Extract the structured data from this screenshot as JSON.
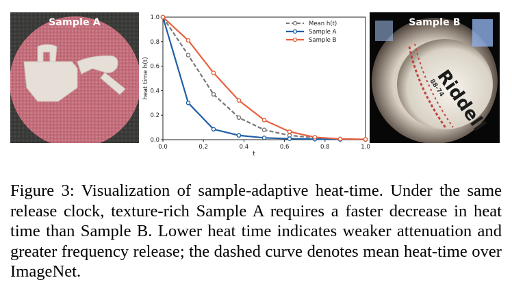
{
  "figure": {
    "left_image_label": "Sample A",
    "right_image_label": "Sample B",
    "right_image_text": "Riddell",
    "right_image_subtext": "88-74"
  },
  "chart_data": {
    "type": "line",
    "xlabel": "t",
    "ylabel": "heat time h(t)",
    "xlim": [
      0.0,
      1.0
    ],
    "ylim": [
      0.0,
      1.0
    ],
    "x_ticks": [
      "0.0",
      "0.2",
      "0.4",
      "0.6",
      "0.8",
      "1.0"
    ],
    "y_ticks": [
      "0.0",
      "0.2",
      "0.4",
      "0.6",
      "0.8",
      "1.0"
    ],
    "grid": false,
    "legend_position": "top-right",
    "x": [
      0.0,
      0.125,
      0.25,
      0.375,
      0.5,
      0.625,
      0.75,
      0.875,
      1.0
    ],
    "series": [
      {
        "name": "Mean h(t)",
        "color": "#777777",
        "style": "dashed",
        "values": [
          1.0,
          0.69,
          0.37,
          0.18,
          0.08,
          0.035,
          0.015,
          0.006,
          0.002
        ]
      },
      {
        "name": "Sample A",
        "color": "#1f5fa6",
        "style": "solid",
        "values": [
          1.0,
          0.3,
          0.085,
          0.035,
          0.015,
          0.008,
          0.004,
          0.002,
          0.001
        ]
      },
      {
        "name": "Sample B",
        "color": "#e8603c",
        "style": "solid",
        "values": [
          1.0,
          0.81,
          0.545,
          0.32,
          0.16,
          0.065,
          0.02,
          0.006,
          0.002
        ]
      }
    ]
  },
  "caption": "Figure 3: Visualization of sample-adaptive heat-time. Under the same release clock, texture-rich Sample A requires a faster decrease in heat time than Sample B. Lower heat time indicates weaker attenuation and greater frequency release; the dashed curve denotes mean heat-time over ImageNet."
}
